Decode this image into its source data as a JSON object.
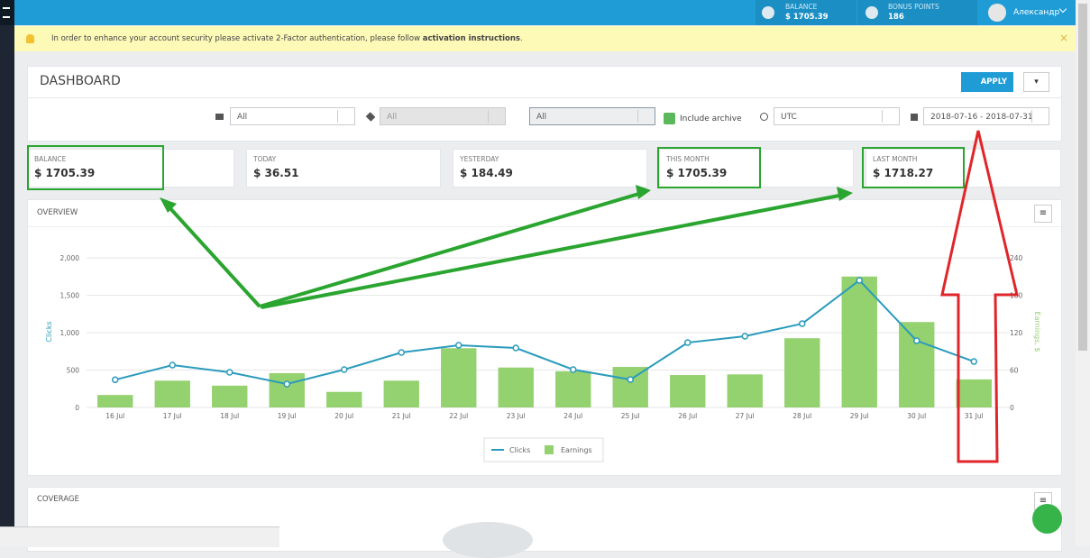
{
  "topbar": {
    "balance_label": "BALANCE",
    "balance_value": "$ 1705.39",
    "bonus_label": "BONUS POINTS",
    "bonus_value": "186",
    "user": "Александр"
  },
  "banner": {
    "text": "In order to enhance your account security please activate 2-Factor authentication, please follow ",
    "link": "activation instructions",
    "end": ".",
    "close": "×"
  },
  "dashboard": {
    "title": "DASHBOARD",
    "apply": "APPLY",
    "filters": {
      "select_1": "All",
      "select_2": "All",
      "select_3": "All",
      "include_archive": "Include archive",
      "timezone": "UTC",
      "date_range": "2018-07-16 - 2018-07-31"
    }
  },
  "stats": [
    {
      "label": "BALANCE",
      "value": "$ 1705.39"
    },
    {
      "label": "TODAY",
      "value": "$ 36.51"
    },
    {
      "label": "YESTERDAY",
      "value": "$ 184.49"
    },
    {
      "label": "THIS MONTH",
      "value": "$ 1705.39"
    },
    {
      "label": "LAST MONTH",
      "value": "$ 1718.27"
    }
  ],
  "overview": {
    "title": "OVERVIEW"
  },
  "coverage": {
    "title": "COVERAGE"
  },
  "chart_data": {
    "type": "combo",
    "y_label": "Clicks",
    "y2_label": "Earnings, $",
    "categories": [
      "16 Jul",
      "17 Jul",
      "18 Jul",
      "19 Jul",
      "20 Jul",
      "21 Jul",
      "22 Jul",
      "23 Jul",
      "24 Jul",
      "25 Jul",
      "26 Jul",
      "27 Jul",
      "28 Jul",
      "29 Jul",
      "30 Jul",
      "31 Jul"
    ],
    "series": [
      {
        "name": "Clicks",
        "type": "line",
        "color": "#2a9bbd",
        "values": [
          370,
          566,
          470,
          313,
          506,
          735,
          831,
          795,
          506,
          373,
          867,
          952,
          1120,
          1699,
          892,
          614
        ]
      },
      {
        "name": "Earnings",
        "type": "bar",
        "axis": "y2",
        "color": "#94d16f",
        "values": [
          20,
          43,
          35,
          55,
          25,
          43,
          95,
          64,
          58,
          65,
          52,
          53,
          111,
          210,
          137,
          45
        ]
      }
    ],
    "ylim": [
      0,
      2000
    ],
    "yticks": [
      0,
      500,
      {
        "value": 1000,
        "label": "1,000"
      },
      {
        "value": 1500,
        "label": "1,500"
      },
      {
        "value": 2000,
        "label": "2,000"
      }
    ],
    "y2lim": [
      0,
      240
    ],
    "y2ticks": [
      0,
      60,
      120,
      180,
      240
    ],
    "grid": true
  }
}
